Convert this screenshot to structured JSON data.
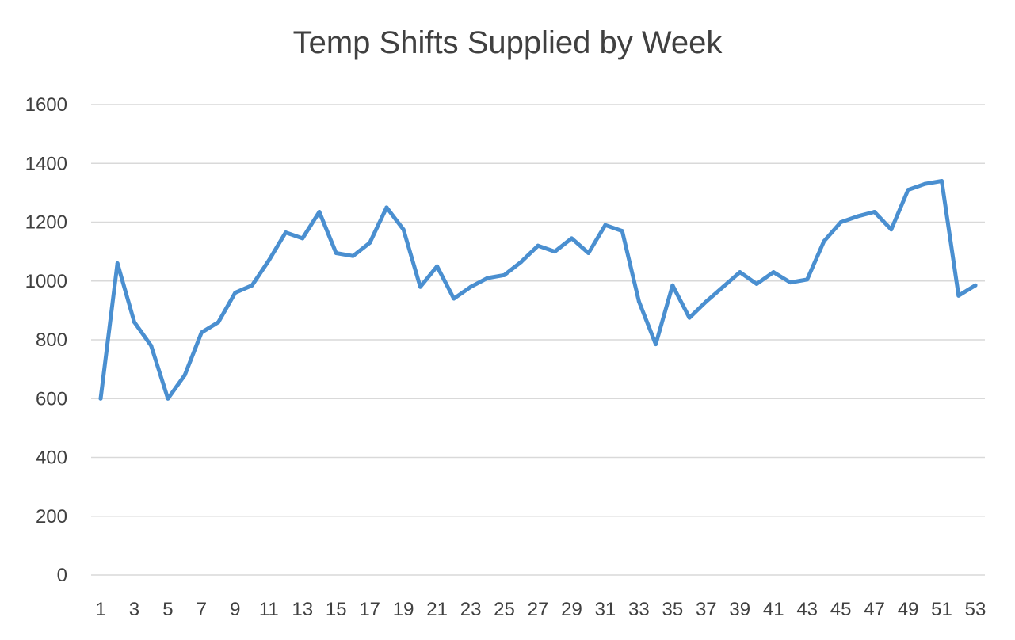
{
  "chart_data": {
    "type": "line",
    "title": "Temp Shifts Supplied by Week",
    "xlabel": "",
    "ylabel": "",
    "ylim": [
      0,
      1600
    ],
    "yticks": [
      0,
      200,
      400,
      600,
      800,
      1000,
      1200,
      1400,
      1600
    ],
    "x": [
      1,
      2,
      3,
      4,
      5,
      6,
      7,
      8,
      9,
      10,
      11,
      12,
      13,
      14,
      15,
      16,
      17,
      18,
      19,
      20,
      21,
      22,
      23,
      24,
      25,
      26,
      27,
      28,
      29,
      30,
      31,
      32,
      33,
      34,
      35,
      36,
      37,
      38,
      39,
      40,
      41,
      42,
      43,
      44,
      45,
      46,
      47,
      48,
      49,
      50,
      51,
      52,
      53
    ],
    "xtick_labels": [
      "1",
      "3",
      "5",
      "7",
      "9",
      "11",
      "13",
      "15",
      "17",
      "19",
      "21",
      "23",
      "25",
      "27",
      "29",
      "31",
      "33",
      "35",
      "37",
      "39",
      "41",
      "43",
      "45",
      "47",
      "49",
      "51",
      "53"
    ],
    "grid": true,
    "legend": "none",
    "line_color": "#4a8fd0",
    "series": [
      {
        "values": [
          600,
          1060,
          860,
          780,
          600,
          680,
          825,
          860,
          960,
          985,
          1070,
          1165,
          1145,
          1235,
          1095,
          1085,
          1130,
          1250,
          1175,
          980,
          1050,
          940,
          980,
          1010,
          1020,
          1065,
          1120,
          1100,
          1145,
          1095,
          1190,
          1170,
          930,
          785,
          985,
          875,
          930,
          980,
          1030,
          990,
          1030,
          995,
          1005,
          1135,
          1200,
          1220,
          1235,
          1175,
          1310,
          1330,
          1340,
          950,
          985
        ]
      }
    ]
  }
}
